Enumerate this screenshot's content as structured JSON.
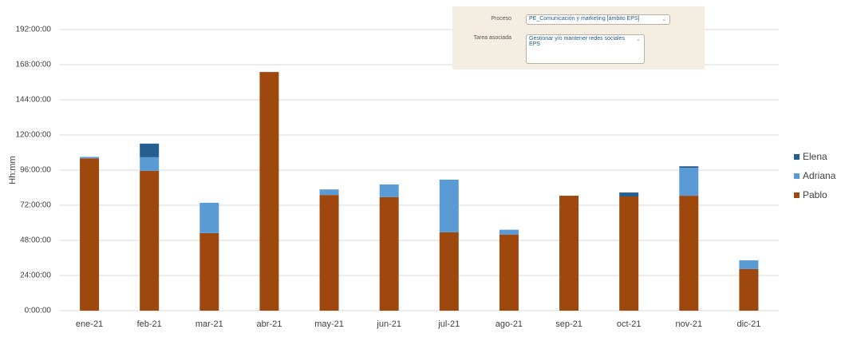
{
  "chart_data": {
    "type": "stacked_bar",
    "ylabel": "Hh:mm",
    "categories": [
      "ene-21",
      "feb-21",
      "mar-21",
      "abr-21",
      "may-21",
      "jun-21",
      "jul-21",
      "ago-21",
      "sep-21",
      "oct-21",
      "nov-21",
      "dic-21"
    ],
    "series": [
      {
        "name": "Pablo",
        "color": "#9e480e",
        "values": [
          104,
          95.5,
          53,
          163,
          79,
          77.5,
          53.5,
          52,
          78.5,
          78,
          78.5,
          28.4
        ]
      },
      {
        "name": "Adriana",
        "color": "#5b9bd5",
        "values": [
          1,
          9.3,
          20.7,
          0,
          3.8,
          8.7,
          36,
          3.3,
          0,
          0,
          19,
          6
        ]
      },
      {
        "name": "Elena",
        "color": "#255e91",
        "values": [
          0,
          9.3,
          0,
          0,
          0,
          0,
          0,
          0,
          0,
          2.7,
          1.1,
          0
        ]
      }
    ],
    "ylim": [
      0,
      192
    ],
    "yticks": [
      {
        "value": 0,
        "label": "0:00:00"
      },
      {
        "value": 24,
        "label": "24:00:00"
      },
      {
        "value": 48,
        "label": "48:00:00"
      },
      {
        "value": 72,
        "label": "72:00:00"
      },
      {
        "value": 96,
        "label": "96:00:00"
      },
      {
        "value": 120,
        "label": "120:00:00"
      },
      {
        "value": 144,
        "label": "144:00:00"
      },
      {
        "value": 168,
        "label": "168:00:00"
      },
      {
        "value": 192,
        "label": "192:00:00"
      }
    ],
    "grid": true,
    "legend": "right"
  },
  "filters": {
    "proceso": {
      "label": "Proceso",
      "value": "PE_Comunicación y marketing [ámbito EPS]"
    },
    "tarea": {
      "label": "Tarea asociada",
      "value": "Gestionar y/o mantener redes sociales EPS"
    }
  }
}
